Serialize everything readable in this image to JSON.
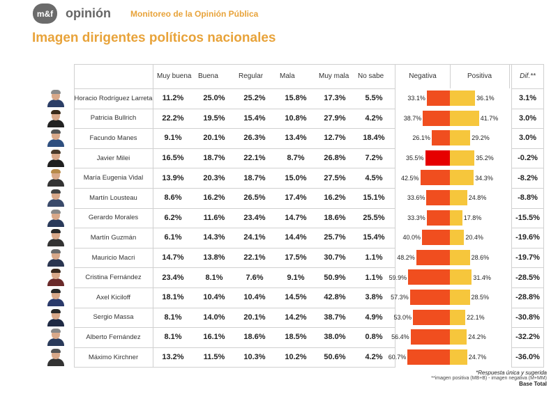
{
  "header": {
    "logo_text": "m&f",
    "brand": "opinión",
    "subtitle": "Monitoreo de la Opinión Pública",
    "title": "Imagen dirigentes políticos nacionales"
  },
  "colors": {
    "accent": "#e8a33a",
    "negative": "#f04e1f",
    "negative_strong": "#e60000",
    "positive": "#f6c63c"
  },
  "footnotes": {
    "line1": "*Respuesta única y sugerida",
    "line2": "**imagen positiva (MB+B) - imagen negativa (M+MM)",
    "line3": "Base Total"
  },
  "chart_data": {
    "type": "table",
    "title": "Imagen dirigentes políticos nacionales",
    "columns": [
      "Muy buena",
      "Buena",
      "Regular",
      "Mala",
      "Muy mala",
      "No sabe"
    ],
    "bar_columns": [
      "Negativa",
      "Positiva"
    ],
    "diff_column": "Dif.**",
    "rows": [
      {
        "name": "Horacio Rodríguez Larreta",
        "values": [
          "11.2%",
          "25.0%",
          "25.2%",
          "15.8%",
          "17.3%",
          "5.5%"
        ],
        "negativa": 33.1,
        "positiva": 36.1,
        "neg_label": "33.1%",
        "pos_label": "36.1%",
        "diff": "3.1%"
      },
      {
        "name": "Patricia Bullrich",
        "values": [
          "22.2%",
          "19.5%",
          "15.4%",
          "10.8%",
          "27.9%",
          "4.2%"
        ],
        "negativa": 38.7,
        "positiva": 41.7,
        "neg_label": "38.7%",
        "pos_label": "41.7%",
        "diff": "3.0%"
      },
      {
        "name": "Facundo Manes",
        "values": [
          "9.1%",
          "20.1%",
          "26.3%",
          "13.4%",
          "12.7%",
          "18.4%"
        ],
        "negativa": 26.1,
        "positiva": 29.2,
        "neg_label": "26.1%",
        "pos_label": "29.2%",
        "diff": "3.0%"
      },
      {
        "name": "Javier Milei",
        "values": [
          "16.5%",
          "18.7%",
          "22.1%",
          "8.7%",
          "26.8%",
          "7.2%"
        ],
        "negativa": 35.5,
        "positiva": 35.2,
        "neg_label": "35.5%",
        "pos_label": "35.2%",
        "diff": "-0.2%"
      },
      {
        "name": "María Eugenia Vidal",
        "values": [
          "13.9%",
          "20.3%",
          "18.7%",
          "15.0%",
          "27.5%",
          "4.5%"
        ],
        "negativa": 42.5,
        "positiva": 34.3,
        "neg_label": "42.5%",
        "pos_label": "34.3%",
        "diff": "-8.2%"
      },
      {
        "name": "Martín Lousteau",
        "values": [
          "8.6%",
          "16.2%",
          "26.5%",
          "17.4%",
          "16.2%",
          "15.1%"
        ],
        "negativa": 33.6,
        "positiva": 24.8,
        "neg_label": "33.6%",
        "pos_label": "24.8%",
        "diff": "-8.8%"
      },
      {
        "name": "Gerardo Morales",
        "values": [
          "6.2%",
          "11.6%",
          "23.4%",
          "14.7%",
          "18.6%",
          "25.5%"
        ],
        "negativa": 33.3,
        "positiva": 17.8,
        "neg_label": "33.3%",
        "pos_label": "17.8%",
        "diff": "-15.5%"
      },
      {
        "name": "Martín Guzmán",
        "values": [
          "6.1%",
          "14.3%",
          "24.1%",
          "14.4%",
          "25.7%",
          "15.4%"
        ],
        "negativa": 40.0,
        "positiva": 20.4,
        "neg_label": "40.0%",
        "pos_label": "20.4%",
        "diff": "-19.6%"
      },
      {
        "name": "Mauricio Macri",
        "values": [
          "14.7%",
          "13.8%",
          "22.1%",
          "17.5%",
          "30.7%",
          "1.1%"
        ],
        "negativa": 48.2,
        "positiva": 28.6,
        "neg_label": "48.2%",
        "pos_label": "28.6%",
        "diff": "-19.7%"
      },
      {
        "name": "Cristina Fernández",
        "values": [
          "23.4%",
          "8.1%",
          "7.6%",
          "9.1%",
          "50.9%",
          "1.1%"
        ],
        "negativa": 59.9,
        "positiva": 31.4,
        "neg_label": "59.9%",
        "pos_label": "31.4%",
        "diff": "-28.5%"
      },
      {
        "name": "Axel Kiciloff",
        "values": [
          "18.1%",
          "10.4%",
          "10.4%",
          "14.5%",
          "42.8%",
          "3.8%"
        ],
        "negativa": 57.3,
        "positiva": 28.5,
        "neg_label": "57.3%",
        "pos_label": "28.5%",
        "diff": "-28.8%"
      },
      {
        "name": "Sergio Massa",
        "values": [
          "8.1%",
          "14.0%",
          "20.1%",
          "14.2%",
          "38.7%",
          "4.9%"
        ],
        "negativa": 53.0,
        "positiva": 22.1,
        "neg_label": "53.0%",
        "pos_label": "22.1%",
        "diff": "-30.8%"
      },
      {
        "name": "Alberto Fernández",
        "values": [
          "8.1%",
          "16.1%",
          "18.6%",
          "18.5%",
          "38.0%",
          "0.8%"
        ],
        "negativa": 56.4,
        "positiva": 24.2,
        "neg_label": "56.4%",
        "pos_label": "24.2%",
        "diff": "-32.2%"
      },
      {
        "name": "Máximo Kirchner",
        "values": [
          "13.2%",
          "11.5%",
          "10.3%",
          "10.2%",
          "50.6%",
          "4.2%"
        ],
        "negativa": 60.7,
        "positiva": 24.7,
        "neg_label": "60.7%",
        "pos_label": "24.7%",
        "diff": "-36.0%"
      }
    ]
  }
}
